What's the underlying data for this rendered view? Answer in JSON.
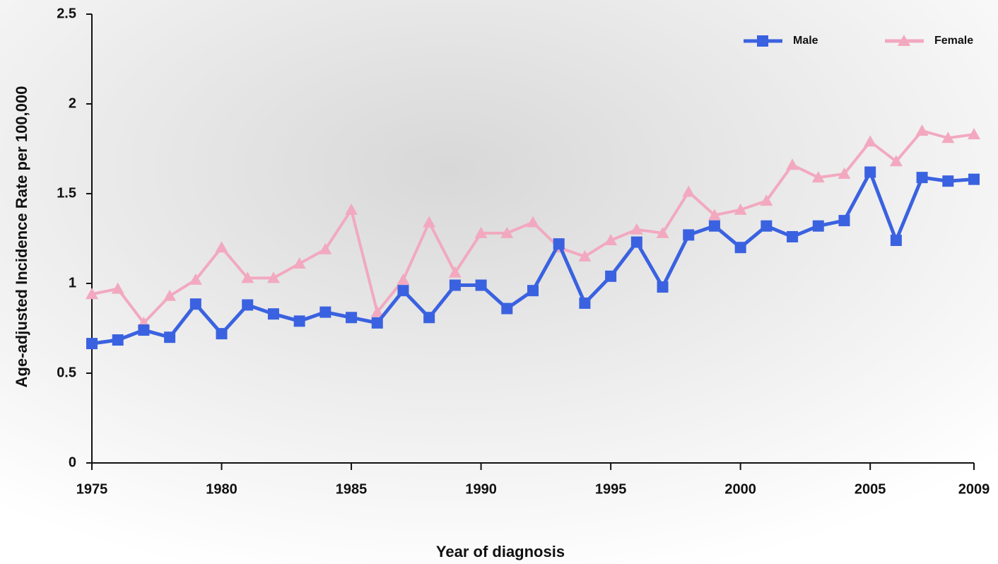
{
  "chart_data": {
    "type": "line",
    "x_label": "Year of diagnosis",
    "y_label": "Age-adjusted Incidence Rate per 100,000",
    "x": [
      1975,
      1976,
      1977,
      1978,
      1979,
      1980,
      1981,
      1982,
      1983,
      1984,
      1985,
      1986,
      1987,
      1988,
      1989,
      1990,
      1991,
      1992,
      1993,
      1994,
      1995,
      1996,
      1997,
      1998,
      1999,
      2000,
      2001,
      2002,
      2003,
      2004,
      2005,
      2006,
      2007,
      2008,
      2009
    ],
    "series": [
      {
        "name": "Male",
        "color": "#3a62e0",
        "marker": "square",
        "values": [
          0.665,
          0.685,
          0.74,
          0.7,
          0.885,
          0.72,
          0.88,
          0.83,
          0.79,
          0.84,
          0.81,
          0.78,
          0.96,
          0.81,
          0.99,
          0.99,
          0.86,
          0.96,
          1.22,
          0.89,
          1.04,
          1.23,
          0.98,
          1.27,
          1.32,
          1.2,
          1.32,
          1.26,
          1.32,
          1.35,
          1.62,
          1.24,
          1.59,
          1.57,
          1.58
        ]
      },
      {
        "name": "Female",
        "color": "#f2a9c0",
        "marker": "triangle",
        "values": [
          0.94,
          0.97,
          0.78,
          0.93,
          1.02,
          1.2,
          1.03,
          1.03,
          1.11,
          1.19,
          1.41,
          0.84,
          1.02,
          1.34,
          1.06,
          1.28,
          1.28,
          1.34,
          1.2,
          1.15,
          1.24,
          1.3,
          1.28,
          1.51,
          1.38,
          1.41,
          1.46,
          1.66,
          1.59,
          1.61,
          1.79,
          1.68,
          1.85,
          1.81,
          1.83
        ]
      }
    ],
    "xlim": [
      1975,
      2009
    ],
    "xticks": [
      1975,
      1980,
      1985,
      1990,
      1995,
      2000,
      2005,
      2009
    ],
    "ylim": [
      0,
      2.5
    ],
    "yticks": [
      0,
      0.5,
      1,
      1.5,
      2,
      2.5
    ],
    "legend": "top-right"
  }
}
